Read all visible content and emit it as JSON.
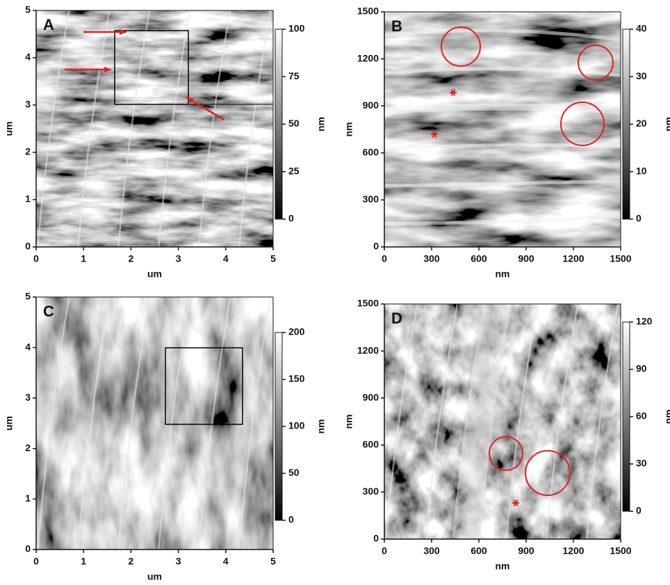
{
  "chart_data": [
    {
      "type": "afm-image",
      "label": "A",
      "xlabel": "um",
      "ylabel": "um",
      "xlim": [
        0,
        5
      ],
      "ylim": [
        0,
        5
      ],
      "xticks": [
        0,
        1,
        2,
        3,
        4,
        5
      ],
      "yticks": [
        0,
        1,
        2,
        3,
        4,
        5
      ],
      "colorbar_label": "nm",
      "colorbar_lim": [
        0,
        100
      ],
      "colorbar_ticks": [
        0,
        25,
        50,
        75,
        100
      ]
    },
    {
      "type": "afm-image",
      "label": "B",
      "xlabel": "nm",
      "ylabel": "nm",
      "xlim": [
        0,
        1500
      ],
      "ylim": [
        0,
        1500
      ],
      "xticks": [
        0,
        300,
        600,
        900,
        1200,
        1500
      ],
      "yticks": [
        0,
        300,
        600,
        900,
        1200,
        1500
      ],
      "colorbar_label": "nm",
      "colorbar_lim": [
        0,
        40
      ],
      "colorbar_ticks": [
        0,
        10,
        20,
        30,
        40
      ]
    },
    {
      "type": "afm-image",
      "label": "C",
      "xlabel": "um",
      "ylabel": "um",
      "xlim": [
        0,
        5
      ],
      "ylim": [
        0,
        5
      ],
      "xticks": [
        0,
        1,
        2,
        3,
        4,
        5
      ],
      "yticks": [
        0,
        1,
        2,
        3,
        4,
        5
      ],
      "colorbar_label": "nm",
      "colorbar_lim": [
        0,
        200
      ],
      "colorbar_ticks": [
        0,
        50,
        100,
        150,
        200
      ]
    },
    {
      "type": "afm-image",
      "label": "D",
      "xlabel": "nm",
      "ylabel": "nm",
      "xlim": [
        0,
        1500
      ],
      "ylim": [
        0,
        1500
      ],
      "xticks": [
        0,
        300,
        600,
        900,
        1200,
        1500
      ],
      "yticks": [
        0,
        300,
        600,
        900,
        1200,
        1500
      ],
      "colorbar_label": "nm",
      "colorbar_lim": [
        0,
        120
      ],
      "colorbar_ticks": [
        0,
        30,
        60,
        90,
        120
      ]
    }
  ]
}
